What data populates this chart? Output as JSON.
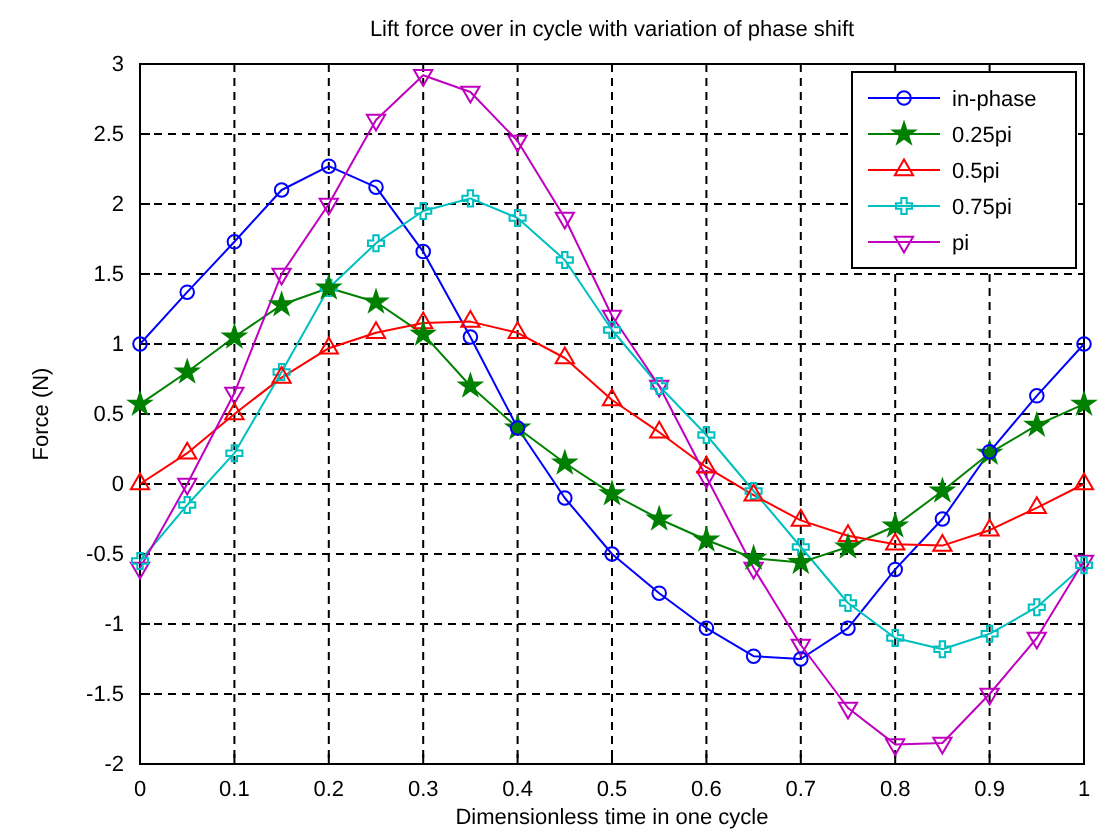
{
  "chart_data": {
    "type": "line",
    "title": "Lift force over in cycle with variation of phase shift",
    "xlabel": "Dimensionless time in one cycle",
    "ylabel": "Force (N)",
    "x": [
      0,
      0.05,
      0.1,
      0.15,
      0.2,
      0.25,
      0.3,
      0.35,
      0.4,
      0.45,
      0.5,
      0.55,
      0.6,
      0.65,
      0.7,
      0.75,
      0.8,
      0.85,
      0.9,
      0.95,
      1.0
    ],
    "series": [
      {
        "name": "in-phase",
        "color": "#0000ff",
        "marker": "circle",
        "values": [
          1.0,
          1.37,
          1.73,
          2.1,
          2.27,
          2.12,
          1.66,
          1.05,
          0.4,
          -0.1,
          -0.5,
          -0.78,
          -1.03,
          -1.23,
          -1.25,
          -1.03,
          -0.61,
          -0.25,
          0.23,
          0.63,
          1.0
        ]
      },
      {
        "name": "0.25pi",
        "color": "#008000",
        "marker": "star",
        "values": [
          0.57,
          0.8,
          1.05,
          1.28,
          1.4,
          1.3,
          1.07,
          0.7,
          0.4,
          0.15,
          -0.07,
          -0.25,
          -0.4,
          -0.53,
          -0.56,
          -0.45,
          -0.3,
          -0.05,
          0.22,
          0.42,
          0.57
        ]
      },
      {
        "name": "0.5pi",
        "color": "#ff0000",
        "marker": "triangle",
        "values": [
          0.0,
          0.22,
          0.5,
          0.76,
          0.97,
          1.08,
          1.15,
          1.16,
          1.08,
          0.9,
          0.6,
          0.37,
          0.12,
          -0.08,
          -0.26,
          -0.37,
          -0.43,
          -0.44,
          -0.33,
          -0.17,
          0.0
        ]
      },
      {
        "name": "0.75pi",
        "color": "#00bfbf",
        "marker": "cross",
        "values": [
          -0.55,
          -0.15,
          0.22,
          0.8,
          1.4,
          1.72,
          1.95,
          2.04,
          1.9,
          1.6,
          1.1,
          0.7,
          0.35,
          -0.05,
          -0.45,
          -0.85,
          -1.1,
          -1.18,
          -1.07,
          -0.88,
          -0.58
        ]
      },
      {
        "name": "pi",
        "color": "#bf00bf",
        "marker": "triangle-down",
        "values": [
          -0.6,
          0.0,
          0.65,
          1.5,
          2.0,
          2.6,
          2.92,
          2.8,
          2.45,
          1.9,
          1.2,
          0.7,
          0.05,
          -0.6,
          -1.15,
          -1.6,
          -1.86,
          -1.85,
          -1.5,
          -1.1,
          -0.55
        ]
      }
    ],
    "xlim": [
      0,
      1
    ],
    "xticks": [
      0,
      0.1,
      0.2,
      0.3,
      0.4,
      0.5,
      0.6,
      0.7,
      0.8,
      0.9,
      1
    ],
    "ylim": [
      -2,
      3
    ],
    "yticks": [
      -2,
      -1.5,
      -1,
      -0.5,
      0,
      0.5,
      1,
      1.5,
      2,
      2.5,
      3
    ],
    "grid": true,
    "legend": "top right",
    "line_style": "solid"
  }
}
